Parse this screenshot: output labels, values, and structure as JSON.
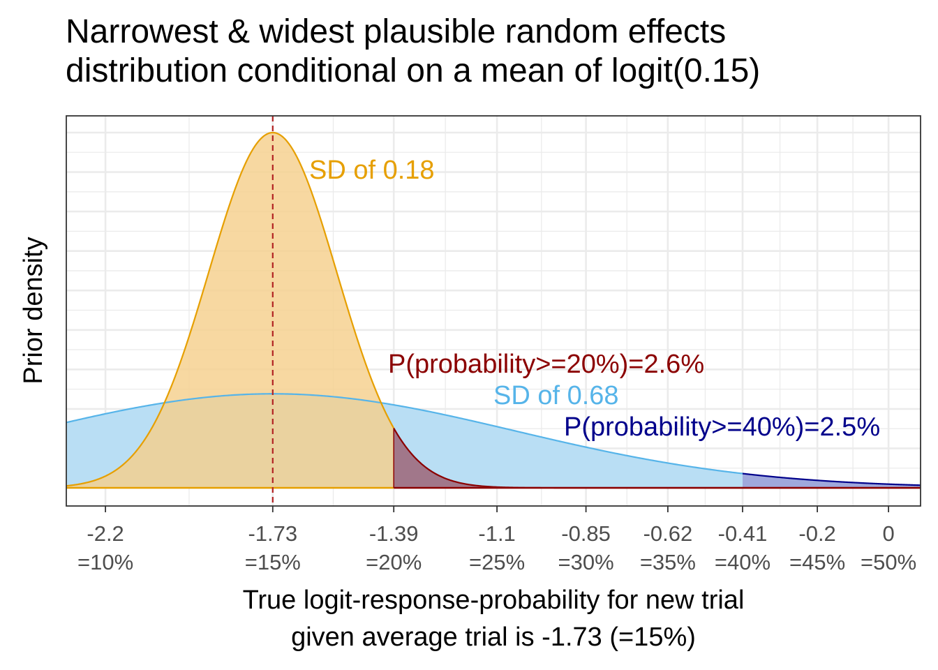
{
  "chart_data": {
    "type": "area",
    "title_lines": [
      "Narrowest & widest plausible random effects",
      "distribution conditional on a mean of logit(0.15)"
    ],
    "xlabel_lines": [
      "True logit-response-probability for new trial",
      "given average trial is -1.73 (=15%)"
    ],
    "ylabel": "Prior density",
    "xlim": [
      -2.31,
      0.09
    ],
    "grid": true,
    "x_ticks": [
      {
        "value": -2.2,
        "label": "-2.2",
        "sublabel": "=10%"
      },
      {
        "value": -1.73,
        "label": "-1.73",
        "sublabel": "=15%"
      },
      {
        "value": -1.39,
        "label": "-1.39",
        "sublabel": "=20%"
      },
      {
        "value": -1.1,
        "label": "-1.1",
        "sublabel": "=25%"
      },
      {
        "value": -0.85,
        "label": "-0.85",
        "sublabel": "=30%"
      },
      {
        "value": -0.62,
        "label": "-0.62",
        "sublabel": "=35%"
      },
      {
        "value": -0.41,
        "label": "-0.41",
        "sublabel": "=40%"
      },
      {
        "value": -0.2,
        "label": "-0.2",
        "sublabel": "=45%"
      },
      {
        "value": 0,
        "label": "0",
        "sublabel": "=50%"
      }
    ],
    "mean": -1.73,
    "series": [
      {
        "name": "SD of 0.18",
        "sd": 0.18,
        "fill": "#F5D08C",
        "stroke": "#E69F00",
        "label_color": "#E69F00",
        "tail_from": -1.39,
        "tail_fill": "#9E6B7E",
        "tail_stroke": "#8B0000",
        "tail_label": "P(probability>=20%)=2.6%",
        "tail_label_color": "#8B0000"
      },
      {
        "name": "SD of 0.68",
        "sd": 0.68,
        "fill": "#B9DEF4",
        "stroke": "#56B4E9",
        "label_color": "#56B4E9",
        "tail_from": -0.41,
        "tail_fill": "#9FA8DC",
        "tail_stroke": "#00008B",
        "tail_label": "P(probability>=40%)=2.5%",
        "tail_label_color": "#00008B"
      }
    ],
    "vline": {
      "x": -1.73,
      "color": "#B22222",
      "style": "dashed"
    }
  }
}
